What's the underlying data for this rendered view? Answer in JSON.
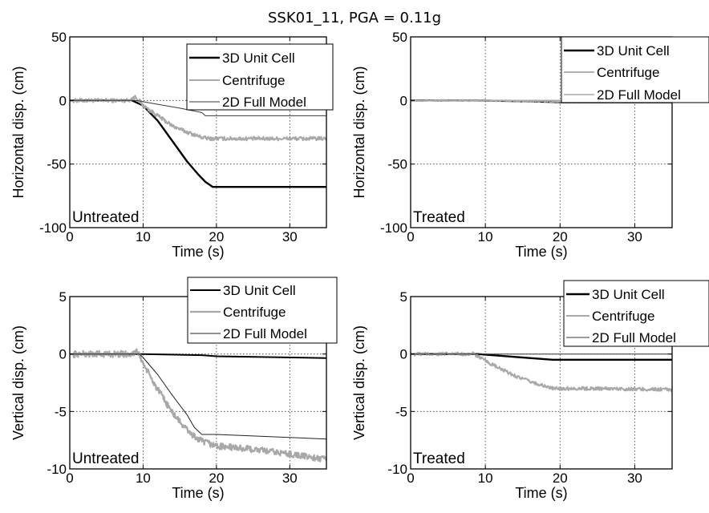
{
  "figure": {
    "title": "SSK01_11, PGA = 0.11g"
  },
  "chart_data": [
    {
      "type": "line",
      "panel": "top-left",
      "annotation": "Untreated",
      "xlabel": "Time (s)",
      "ylabel": "Horizontal disp. (cm)",
      "xlim": [
        0,
        35
      ],
      "ylim": [
        -100,
        50
      ],
      "xticks": [
        "0",
        "10",
        "20",
        "30"
      ],
      "yticks": [
        "50",
        "0",
        "-50",
        "-100"
      ],
      "grid": true,
      "legend_position": "top-right",
      "series": [
        {
          "name": "3D Unit Cell",
          "color": "#000000",
          "width": 2.4,
          "noise": 0,
          "x": [
            0,
            8.5,
            10,
            12,
            14,
            16,
            17.5,
            18.5,
            19.5,
            20,
            35
          ],
          "y": [
            0,
            0,
            -4,
            -16,
            -32,
            -48,
            -58,
            -64,
            -68,
            -68,
            -68
          ]
        },
        {
          "name": "Centrifuge",
          "color": "#a8a8a8",
          "width": 2.0,
          "noise": 1.5,
          "x": [
            0,
            8,
            9,
            10,
            12,
            14,
            16,
            18,
            19,
            20,
            35
          ],
          "y": [
            0,
            0,
            3,
            -4,
            -12,
            -20,
            -25,
            -29,
            -30,
            -30,
            -30
          ]
        },
        {
          "name": "2D Full Model",
          "color": "#3a3a3a",
          "width": 1.0,
          "noise": 0,
          "x": [
            0,
            9,
            12,
            15,
            18,
            18.5,
            35
          ],
          "y": [
            0,
            0,
            -3,
            -6,
            -9.5,
            -12,
            -12
          ]
        }
      ]
    },
    {
      "type": "line",
      "panel": "top-right",
      "annotation": "Treated",
      "xlabel": "Time (s)",
      "ylabel": "Horizontal disp. (cm)",
      "xlim": [
        0,
        35
      ],
      "ylim": [
        -100,
        50
      ],
      "xticks": [
        "0",
        "10",
        "20",
        "30"
      ],
      "yticks": [
        "50",
        "0",
        "-50",
        "-100"
      ],
      "grid": true,
      "legend_position": "top-right",
      "series": [
        {
          "name": "3D Unit Cell",
          "color": "#000000",
          "width": 2.4,
          "noise": 0,
          "x": [
            0,
            9,
            18,
            20,
            35
          ],
          "y": [
            0,
            0,
            -1,
            -1.5,
            -1.5
          ]
        },
        {
          "name": "Centrifuge",
          "color": "#a8a8a8",
          "width": 1.8,
          "noise": 0.6,
          "x": [
            0,
            9,
            20,
            35
          ],
          "y": [
            0,
            0,
            -1,
            -1
          ]
        },
        {
          "name": "2D Full Model",
          "color": "#a8a8a8",
          "width": 1.6,
          "noise": 0,
          "x": [
            0,
            35
          ],
          "y": [
            0,
            0
          ]
        }
      ]
    },
    {
      "type": "line",
      "panel": "bottom-left",
      "annotation": "Untreated",
      "xlabel": "Time (s)",
      "ylabel": "Vertical disp. (cm)",
      "xlim": [
        0,
        35
      ],
      "ylim": [
        -10,
        5
      ],
      "xticks": [
        "0",
        "10",
        "20",
        "30"
      ],
      "yticks": [
        "5",
        "0",
        "-5",
        "-10"
      ],
      "grid": true,
      "legend_position": "top-right",
      "series": [
        {
          "name": "3D Unit Cell",
          "color": "#000000",
          "width": 2.0,
          "noise": 0,
          "x": [
            0,
            10,
            18,
            20,
            35
          ],
          "y": [
            0,
            0,
            -0.1,
            -0.2,
            -0.35
          ]
        },
        {
          "name": "Centrifuge",
          "color": "#a8a8a8",
          "width": 2.2,
          "noise": 0.28,
          "x": [
            0,
            8.5,
            9.3,
            10,
            11,
            12,
            13,
            14,
            15,
            16,
            17,
            18,
            20,
            25,
            30,
            35
          ],
          "y": [
            0,
            0,
            0.2,
            -0.8,
            -2.0,
            -3.1,
            -4.1,
            -5.1,
            -5.9,
            -6.6,
            -7.2,
            -7.6,
            -8.0,
            -8.3,
            -8.7,
            -9.2
          ]
        },
        {
          "name": "2D Full Model",
          "color": "#222222",
          "width": 1.0,
          "noise": 0,
          "x": [
            0,
            9.5,
            10,
            12,
            14,
            16,
            17,
            18,
            20,
            35
          ],
          "y": [
            0,
            0,
            -0.3,
            -1.8,
            -3.6,
            -5.3,
            -6.4,
            -7.0,
            -7.0,
            -7.4
          ]
        }
      ]
    },
    {
      "type": "line",
      "panel": "bottom-right",
      "annotation": "Treated",
      "xlabel": "Time (s)",
      "ylabel": "Vertical disp. (cm)",
      "xlim": [
        0,
        35
      ],
      "ylim": [
        -10,
        5
      ],
      "xticks": [
        "0",
        "10",
        "20",
        "30"
      ],
      "yticks": [
        "5",
        "0",
        "-5",
        "-10"
      ],
      "grid": true,
      "legend_position": "top-right",
      "series": [
        {
          "name": "3D Unit Cell",
          "color": "#000000",
          "width": 2.4,
          "noise": 0,
          "x": [
            0,
            9,
            14,
            19,
            35
          ],
          "y": [
            0,
            0,
            -0.25,
            -0.5,
            -0.5
          ]
        },
        {
          "name": "Centrifuge",
          "color": "#a8a8a8",
          "width": 2.0,
          "noise": 0.15,
          "x": [
            0,
            8.5,
            10,
            12,
            14,
            16,
            18,
            19,
            25,
            35
          ],
          "y": [
            0,
            0,
            -0.6,
            -1.3,
            -1.9,
            -2.4,
            -2.8,
            -3.0,
            -3.0,
            -3.1
          ]
        },
        {
          "name": "2D Full Model",
          "color": "#3a3a3a",
          "width": 1.0,
          "noise": 0,
          "x": [
            0,
            35
          ],
          "y": [
            0,
            0
          ]
        }
      ]
    }
  ]
}
